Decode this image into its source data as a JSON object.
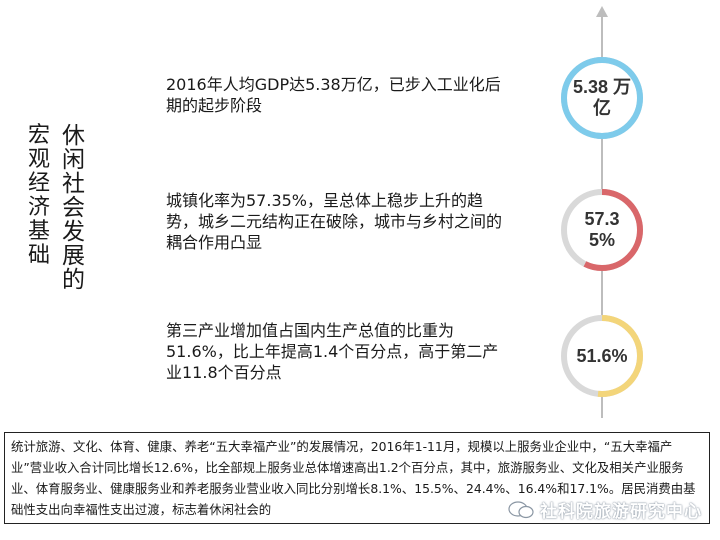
{
  "title": {
    "col1": [
      "宏",
      "观",
      "经",
      "济",
      "基",
      "础"
    ],
    "col2": [
      "休",
      "闲",
      "社",
      "会",
      "发",
      "展",
      "的"
    ]
  },
  "statements": [
    {
      "text": "2016年人均GDP达5.38万亿，已步入工业化后期的起步阶段"
    },
    {
      "text": "城镇化率为57.35%，呈总体上稳步上升的趋势，城乡二元结构正在破除，城市与乡村之间的耦合作用凸显"
    },
    {
      "text": "第三产业增加值占国内生产总值的比重为51.6%，比上年提高1.4个百分点，高于第二产业11.8个百分点"
    }
  ],
  "metrics": [
    {
      "value": "5.38\n万亿",
      "display": "5.38 万亿",
      "color": "#7ecbeb",
      "fill_fraction": 1.0
    },
    {
      "value": "57.35%",
      "display": "57.35%",
      "color": "#d9676a",
      "fill_fraction": 0.5735
    },
    {
      "value": "51.6%",
      "display": "51.6%",
      "color": "#f3d57a",
      "fill_fraction": 0.516
    }
  ],
  "note": "统计旅游、文化、体育、健康、养老“五大幸福产业”的发展情况，2016年1-11月，规模以上服务业企业中，“五大幸福产业”营业收入合计同比增长12.6%，比全部规上服务业总体增速高出1.2个百分点，其中，旅游服务业、文化及相关产业服务业、体育服务业、健康服务业和养老服务业营业收入同比分别增长8.1%、15.5%、24.4%、16.4%和17.1%。居民消费由基础性支出向幸福性支出过渡，标志着休闲社会的",
  "watermark": "社科院旅游研究中心",
  "colors": {
    "axis": "#bdbdbd",
    "ring_track": "#d9d9d9"
  }
}
